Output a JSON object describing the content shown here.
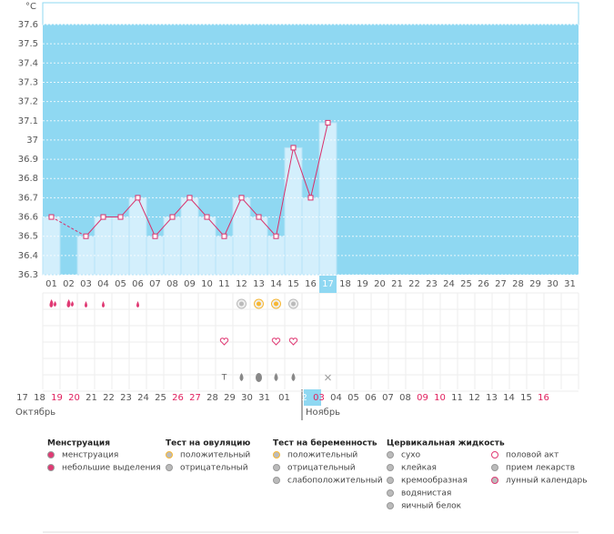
{
  "chart_data": {
    "type": "line",
    "y_label": "°C",
    "categories": [
      "01",
      "02",
      "03",
      "04",
      "05",
      "06",
      "07",
      "08",
      "09",
      "10",
      "11",
      "12",
      "13",
      "14",
      "15",
      "16",
      "17",
      "18",
      "19",
      "20",
      "21",
      "22",
      "23",
      "24",
      "25",
      "26",
      "27",
      "28",
      "29",
      "30",
      "31"
    ],
    "values": [
      36.6,
      null,
      36.5,
      36.6,
      36.6,
      36.7,
      36.5,
      36.6,
      36.7,
      36.6,
      36.5,
      36.7,
      36.6,
      36.5,
      36.96,
      36.7,
      37.09,
      null,
      null,
      null,
      null,
      null,
      null,
      null,
      null,
      null,
      null,
      null,
      null,
      null,
      null
    ],
    "color": "#d9306b",
    "ylim": [
      36.3,
      37.6
    ],
    "yticks": [
      36.3,
      36.4,
      36.5,
      36.6,
      36.7,
      36.8,
      36.9,
      37,
      37.1,
      37.2,
      37.3,
      37.4,
      37.5,
      37.6
    ],
    "grid": true
  },
  "calendar": {
    "dates": [
      "17",
      "18",
      "19",
      "20",
      "21",
      "22",
      "23",
      "24",
      "25",
      "26",
      "27",
      "28",
      "29",
      "30",
      "31",
      "01",
      "02",
      "03",
      "04",
      "05",
      "06",
      "07",
      "08",
      "09",
      "10",
      "11",
      "12",
      "13",
      "14",
      "15",
      "16"
    ],
    "months": [
      "Октябрь",
      "Ноябрь"
    ]
  },
  "legend": [
    {
      "title": "Менструация",
      "items": [
        "менструация",
        "небольшие выделения"
      ]
    },
    {
      "title": "Тест на овуляцию",
      "items": [
        "положительный",
        "отрицательный"
      ]
    },
    {
      "title": "Тест на беременность",
      "items": [
        "положительный",
        "отрицательный",
        "слабоположительный"
      ]
    },
    {
      "title": "Цервикальная жидкость",
      "items": [
        "сухо",
        "клейкая",
        "кремообразная",
        "водянистая",
        "яичный белок"
      ]
    },
    {
      "items": [
        "половой акт",
        "прием лекарств",
        "лунный календарь"
      ]
    }
  ]
}
